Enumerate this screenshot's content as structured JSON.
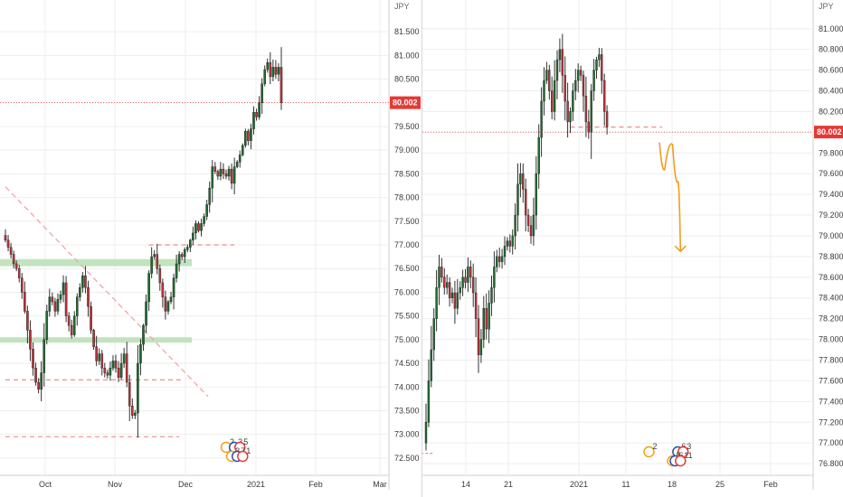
{
  "colors": {
    "up": "#1e6b2c",
    "down": "#b8323a",
    "wick": "#333333",
    "price_tag": "#e53935",
    "zone": "#b7deb4",
    "dashed_red": "#f08a8a",
    "trend_pink": "#f2a5a5",
    "arrow_orange": "#f29d1d",
    "grid": "#eeeeee",
    "event_red": "#e53935",
    "event_blue": "#2a4ea8",
    "event_orange": "#f29d1d"
  },
  "chart_data": [
    {
      "type": "candlestick",
      "name": "left-daily",
      "currency": "JPY",
      "last_price_label": "80.002",
      "ylim": [
        72.25,
        81.75
      ],
      "y_ticks": [
        "81.500",
        "81.000",
        "80.500",
        "80.000",
        "79.500",
        "79.000",
        "78.500",
        "78.000",
        "77.500",
        "77.000",
        "76.500",
        "76.000",
        "75.500",
        "75.000",
        "74.500",
        "74.000",
        "73.500",
        "73.000",
        "72.500"
      ],
      "x_labels": [
        "Oct",
        "Nov",
        "Dec",
        "2021",
        "Feb",
        "Mar"
      ],
      "bars_closes": [
        77.1,
        76.95,
        76.8,
        76.6,
        76.5,
        76.3,
        76.0,
        75.6,
        75.2,
        74.8,
        74.4,
        74.1,
        73.95,
        74.3,
        75.0,
        75.6,
        75.9,
        75.8,
        75.6,
        75.85,
        75.95,
        76.2,
        75.5,
        75.3,
        75.1,
        75.5,
        75.9,
        76.1,
        76.35,
        76.1,
        75.7,
        75.2,
        74.85,
        74.55,
        74.7,
        74.4,
        74.3,
        74.25,
        74.4,
        74.55,
        74.4,
        74.2,
        74.5,
        74.7,
        74.1,
        73.6,
        73.4,
        73.45,
        74.5,
        74.9,
        75.3,
        75.8,
        76.4,
        76.75,
        76.8,
        76.5,
        76.2,
        75.9,
        75.6,
        75.8,
        75.9,
        76.3,
        76.6,
        76.8,
        76.75,
        76.9,
        76.95,
        77.1,
        77.25,
        77.45,
        77.3,
        77.45,
        77.6,
        77.85,
        78.2,
        78.65,
        78.55,
        78.45,
        78.6,
        78.5,
        78.45,
        78.6,
        78.3,
        78.65,
        78.75,
        78.9,
        79.1,
        79.4,
        79.2,
        79.45,
        79.8,
        79.7,
        80.0,
        80.4,
        80.7,
        80.85,
        80.55,
        80.75,
        80.6,
        80.75,
        80.002
      ],
      "zones": [
        [
          76.55,
          76.7
        ],
        [
          74.97,
          75.05
        ]
      ],
      "dashed_levels": [
        {
          "price": 77.0,
          "from_bar": 52,
          "to_bar": 83
        },
        {
          "price": 74.15,
          "from_bar": 0,
          "to_bar": 65
        },
        {
          "price": 72.95,
          "from_bar": 0,
          "to_bar": 63
        }
      ],
      "trendline": {
        "from_bar": 0,
        "from_price": 78.15,
        "to_bar": 85,
        "to_price": 73.8
      },
      "price_line": 80.002,
      "events": [
        {
          "bar": 80,
          "label": "2"
        },
        {
          "bar": 83,
          "label": "3"
        },
        {
          "bar": 85,
          "label": "5"
        },
        {
          "bar": 82,
          "label": "3"
        },
        {
          "bar": 84,
          "label": "7"
        },
        {
          "bar": 86,
          "label": "1"
        }
      ]
    },
    {
      "type": "candlestick",
      "name": "right-intraday",
      "currency": "JPY",
      "last_price_label": "80.002",
      "ylim": [
        76.74,
        81.12
      ],
      "y_ticks": [
        "81.000",
        "80.800",
        "80.600",
        "80.400",
        "80.200",
        "80.000",
        "79.800",
        "79.600",
        "79.400",
        "79.200",
        "79.000",
        "78.800",
        "78.600",
        "78.400",
        "78.200",
        "78.000",
        "77.800",
        "77.600",
        "77.400",
        "77.200",
        "77.000",
        "76.800"
      ],
      "x_labels": [
        "14",
        "21",
        "2021",
        "11",
        "18",
        "25",
        "Feb"
      ],
      "bars_closes": [
        77.2,
        77.6,
        77.9,
        78.2,
        78.5,
        78.7,
        78.6,
        78.5,
        78.55,
        78.4,
        78.45,
        78.3,
        78.45,
        78.5,
        78.6,
        78.55,
        78.7,
        78.6,
        78.45,
        78.2,
        77.85,
        78.0,
        78.3,
        78.1,
        78.35,
        78.5,
        78.7,
        78.8,
        78.75,
        78.8,
        78.9,
        78.95,
        78.9,
        79.0,
        79.2,
        79.5,
        79.6,
        79.45,
        79.2,
        79.1,
        79.0,
        79.2,
        79.6,
        79.95,
        80.3,
        80.5,
        80.6,
        80.4,
        80.2,
        80.5,
        80.7,
        80.8,
        80.55,
        80.3,
        80.1,
        80.2,
        80.4,
        80.5,
        80.6,
        80.55,
        80.35,
        80.1,
        80.0,
        80.4,
        80.6,
        80.7,
        80.75,
        80.5,
        80.2,
        80.05
      ],
      "price_line": 80.002,
      "dashed_level": {
        "price": 80.05,
        "from_bar": 55,
        "to_bar": 90
      },
      "forecast_path": [
        [
          89,
          79.9
        ],
        [
          91,
          79.64
        ],
        [
          94,
          79.88
        ],
        [
          96,
          79.52
        ],
        [
          97,
          78.85
        ]
      ],
      "small_dash": {
        "price": 76.9,
        "from_bar": -2,
        "to_bar": 3
      },
      "events": [
        {
          "bar": 85,
          "label": "2"
        },
        {
          "bar": 96,
          "label": "6"
        },
        {
          "bar": 98,
          "label": "3"
        },
        {
          "bar": 94,
          "label": "5"
        },
        {
          "bar": 95,
          "label": "6"
        },
        {
          "bar": 97,
          "label": "11"
        }
      ]
    }
  ]
}
